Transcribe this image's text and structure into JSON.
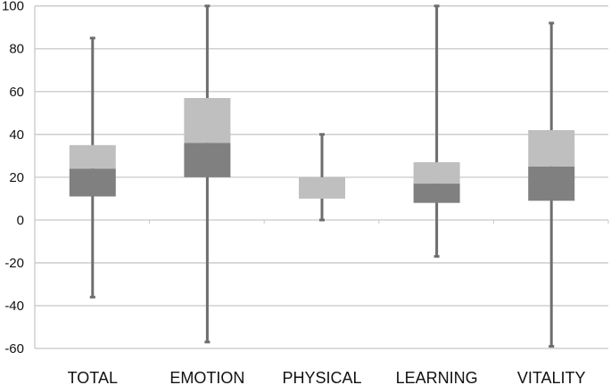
{
  "chart_data": {
    "type": "boxplot",
    "title": "",
    "xlabel": "",
    "ylabel": "",
    "ylim": [
      -60,
      100
    ],
    "yticks": [
      100,
      80,
      60,
      40,
      20,
      0,
      -20,
      -40,
      -60
    ],
    "grid": true,
    "categories": [
      "TOTAL",
      "EMOTION",
      "PHYSICAL",
      "LEARNING",
      "VITALITY"
    ],
    "series": [
      {
        "name": "TOTAL",
        "min": -36,
        "q1": 11,
        "median": 24,
        "q3": 35,
        "max": 85
      },
      {
        "name": "EMOTION",
        "min": -57,
        "q1": 20,
        "median": 36,
        "q3": 57,
        "max": 100
      },
      {
        "name": "PHYSICAL",
        "min": 0,
        "q1": 10,
        "median": 10,
        "q3": 20,
        "max": 40
      },
      {
        "name": "LEARNING",
        "min": -17,
        "q1": 8,
        "median": 17,
        "q3": 27,
        "max": 100
      },
      {
        "name": "VITALITY",
        "min": -59,
        "q1": 9,
        "median": 25,
        "q3": 42,
        "max": 92
      }
    ],
    "colors": {
      "lower_box": "#808080",
      "upper_box": "#bfbfbf",
      "whisker": "#6e6e6e",
      "grid": "#c8c8c8"
    }
  }
}
